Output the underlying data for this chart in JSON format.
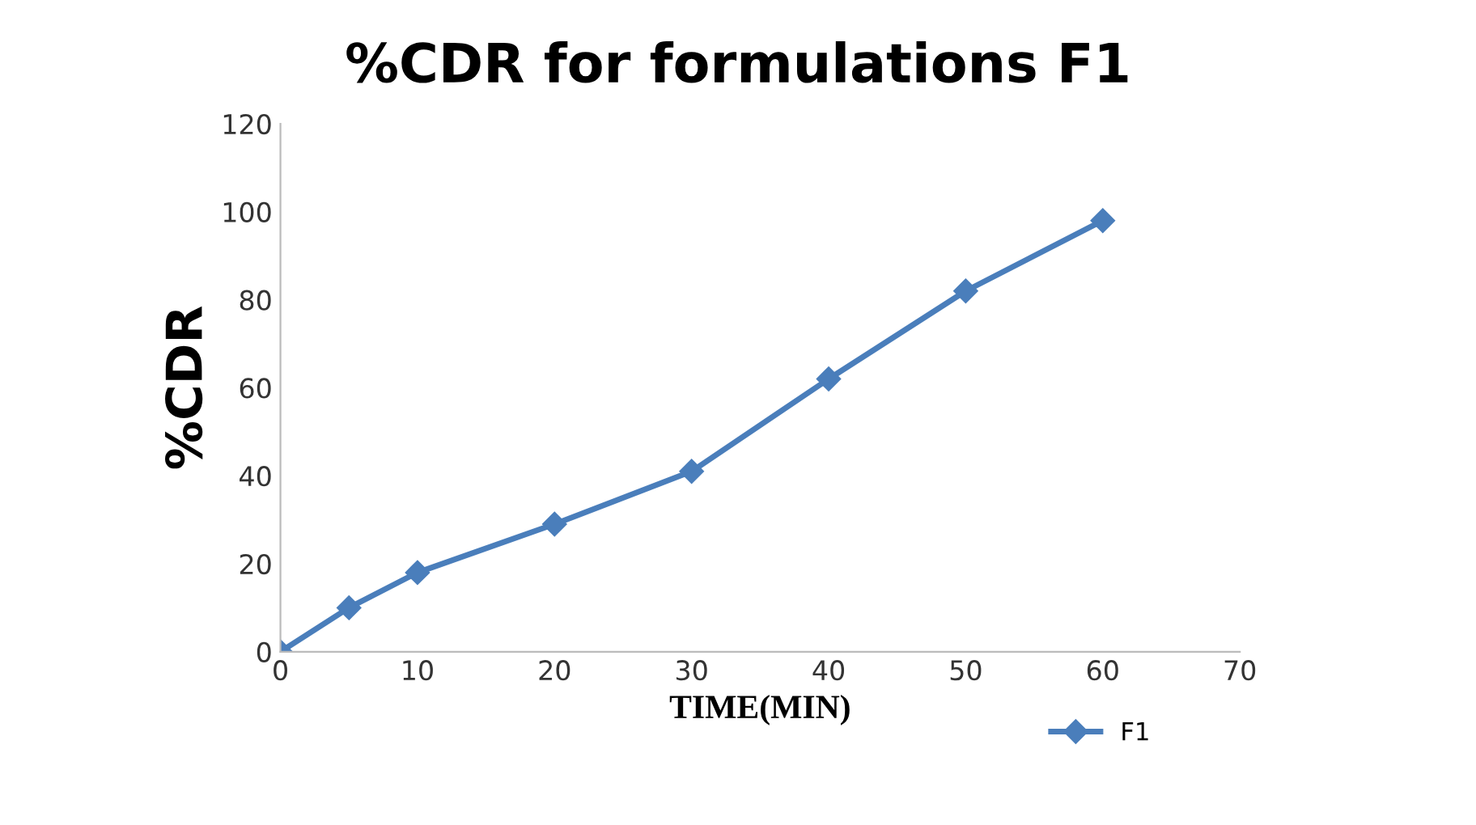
{
  "chart_data": {
    "type": "line",
    "title": "%CDR for formulations F1",
    "xlabel": "TIME(MIN)",
    "ylabel": "%CDR",
    "x": [
      0,
      5,
      10,
      20,
      30,
      40,
      50,
      60
    ],
    "series": [
      {
        "name": "F1",
        "color": "#4a7ebb",
        "values": [
          0,
          10,
          18,
          29,
          41,
          62,
          82,
          98
        ]
      }
    ],
    "xlim": [
      0,
      70
    ],
    "xticks": [
      0,
      10,
      20,
      30,
      40,
      50,
      60,
      70
    ],
    "ylim": [
      0,
      120
    ],
    "yticks": [
      0,
      20,
      40,
      60,
      80,
      100,
      120
    ],
    "marker": "diamond",
    "line_style": "solid",
    "grid": false,
    "legend": "bottom right"
  }
}
